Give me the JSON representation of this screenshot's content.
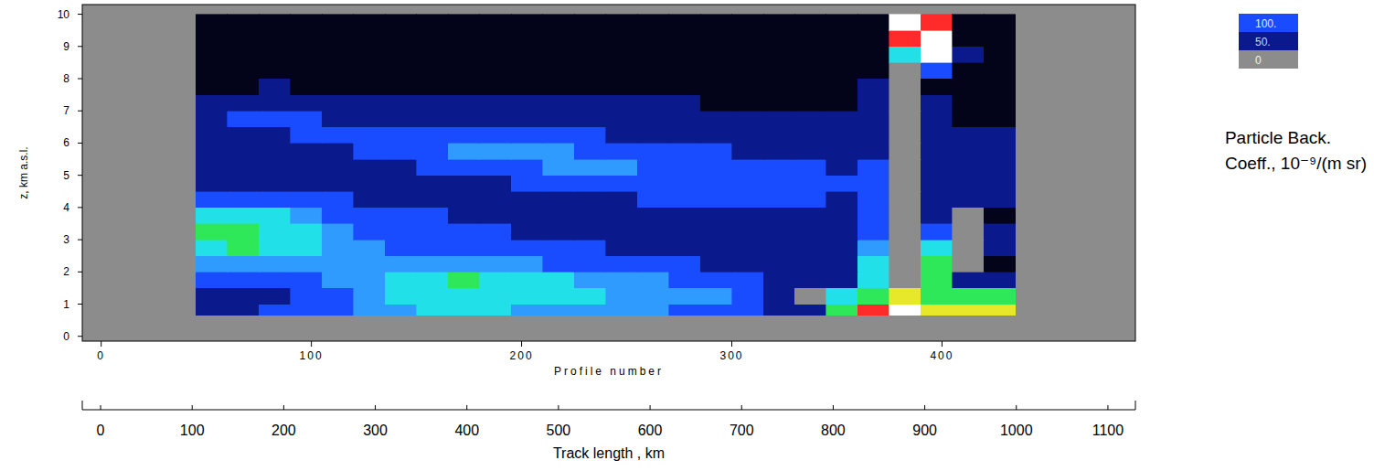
{
  "chart_data": {
    "type": "heatmap",
    "x_label": "Profile number",
    "y_label": "z, km a.s.l.",
    "xlim": [
      -9,
      492
    ],
    "xticks": [
      0,
      100,
      200,
      300,
      400
    ],
    "ylim": [
      -0.15,
      10.3
    ],
    "yticks": [
      0,
      1,
      2,
      3,
      4,
      5,
      6,
      7,
      8,
      9,
      10
    ],
    "x2_label": "Track length , km",
    "x2lim": [
      -20,
      1130
    ],
    "x2ticks": [
      0,
      100,
      200,
      300,
      400,
      500,
      600,
      700,
      800,
      900,
      1000,
      1100
    ],
    "heatmap": {
      "x": [
        45,
        60,
        75,
        90,
        105,
        120,
        135,
        150,
        165,
        180,
        195,
        210,
        225,
        240,
        255,
        270,
        285,
        300,
        315,
        330,
        345,
        360,
        375,
        390,
        405,
        420,
        435
      ],
      "y": [
        0.65,
        1.0,
        1.5,
        2.0,
        2.5,
        3.0,
        3.5,
        4.0,
        4.5,
        5.0,
        5.5,
        6.0,
        6.5,
        7.0,
        7.5,
        8.0,
        8.5,
        9.0,
        9.5,
        10.0
      ],
      "values": [
        [
          80,
          60,
          100,
          130,
          160,
          220,
          260,
          300,
          320,
          300,
          280,
          260,
          240,
          220,
          200,
          180,
          150,
          120,
          80,
          60,
          400,
          700,
          1000,
          500,
          500,
          600
        ],
        [
          60,
          50,
          80,
          120,
          160,
          200,
          300,
          350,
          380,
          370,
          350,
          330,
          300,
          280,
          260,
          240,
          200,
          160,
          80,
          0,
          350,
          400,
          600,
          420,
          450,
          450
        ],
        [
          120,
          100,
          120,
          180,
          260,
          280,
          320,
          380,
          400,
          380,
          350,
          320,
          280,
          260,
          220,
          180,
          150,
          110,
          80,
          60,
          60,
          350,
          0,
          400,
          70,
          60
        ],
        [
          250,
          260,
          240,
          220,
          220,
          210,
          200,
          220,
          230,
          220,
          200,
          180,
          150,
          130,
          120,
          100,
          80,
          70,
          60,
          50,
          50,
          300,
          0,
          400,
          0,
          40
        ],
        [
          380,
          400,
          330,
          300,
          260,
          200,
          160,
          140,
          130,
          120,
          110,
          110,
          100,
          90,
          80,
          70,
          60,
          50,
          50,
          60,
          70,
          200,
          0,
          300,
          0,
          60
        ],
        [
          400,
          420,
          350,
          300,
          220,
          160,
          130,
          110,
          100,
          100,
          90,
          80,
          70,
          60,
          50,
          50,
          50,
          60,
          70,
          70,
          60,
          150,
          0,
          120,
          0,
          50
        ],
        [
          350,
          380,
          300,
          220,
          150,
          120,
          110,
          100,
          90,
          80,
          70,
          60,
          60,
          60,
          60,
          70,
          80,
          90,
          90,
          80,
          70,
          120,
          0,
          60,
          0,
          40
        ],
        [
          120,
          150,
          130,
          110,
          100,
          90,
          80,
          70,
          60,
          60,
          60,
          70,
          80,
          90,
          100,
          110,
          120,
          120,
          110,
          100,
          90,
          100,
          0,
          60,
          50,
          60
        ],
        [
          70,
          80,
          80,
          70,
          60,
          60,
          60,
          70,
          80,
          90,
          100,
          110,
          120,
          140,
          150,
          150,
          140,
          130,
          120,
          110,
          100,
          100,
          0,
          70,
          60,
          60
        ],
        [
          60,
          60,
          60,
          60,
          70,
          80,
          90,
          110,
          130,
          160,
          180,
          200,
          210,
          200,
          180,
          150,
          130,
          120,
          110,
          100,
          90,
          100,
          0,
          80,
          70,
          60
        ],
        [
          50,
          50,
          60,
          70,
          90,
          120,
          140,
          160,
          200,
          220,
          210,
          200,
          180,
          140,
          120,
          110,
          100,
          90,
          80,
          80,
          70,
          90,
          0,
          80,
          60,
          60
        ],
        [
          50,
          60,
          80,
          120,
          140,
          130,
          110,
          100,
          110,
          120,
          120,
          110,
          100,
          90,
          80,
          70,
          70,
          60,
          60,
          60,
          60,
          80,
          0,
          70,
          50,
          50
        ],
        [
          60,
          110,
          130,
          120,
          90,
          80,
          80,
          70,
          80,
          80,
          70,
          70,
          70,
          70,
          60,
          60,
          60,
          50,
          50,
          50,
          50,
          70,
          0,
          60,
          40,
          40
        ],
        [
          60,
          80,
          70,
          60,
          60,
          55,
          55,
          55,
          60,
          60,
          60,
          55,
          55,
          50,
          50,
          50,
          45,
          45,
          40,
          40,
          40,
          60,
          0,
          50,
          30,
          30
        ],
        [
          40,
          40,
          50,
          40,
          40,
          40,
          35,
          35,
          40,
          40,
          40,
          40,
          40,
          40,
          35,
          35,
          35,
          30,
          30,
          25,
          25,
          50,
          0,
          40,
          20,
          20
        ],
        [
          30,
          30,
          30,
          30,
          30,
          30,
          30,
          30,
          30,
          30,
          30,
          30,
          30,
          30,
          30,
          30,
          30,
          30,
          30,
          25,
          20,
          40,
          0,
          100,
          30,
          20
        ],
        [
          25,
          25,
          25,
          25,
          25,
          25,
          25,
          25,
          25,
          25,
          25,
          25,
          25,
          25,
          25,
          25,
          25,
          25,
          25,
          25,
          25,
          40,
          300,
          1000,
          60,
          20
        ],
        [
          20,
          20,
          20,
          20,
          20,
          20,
          20,
          20,
          20,
          20,
          20,
          20,
          20,
          20,
          20,
          20,
          20,
          20,
          20,
          20,
          20,
          30,
          700,
          1000,
          20,
          20
        ],
        [
          20,
          20,
          20,
          20,
          20,
          20,
          20,
          20,
          20,
          20,
          20,
          20,
          20,
          20,
          20,
          20,
          20,
          20,
          20,
          20,
          20,
          30,
          1000,
          700,
          20,
          20
        ]
      ]
    },
    "colorbar": {
      "title": [
        "Particle Back.",
        "Coeff., 10⁻⁹/(m sr)"
      ],
      "levels": [
        0,
        10,
        50,
        100,
        200,
        300,
        400,
        500,
        700,
        1000
      ],
      "colors": [
        "#8c8c8c",
        "#03031a",
        "#0a1a8c",
        "#1a4cff",
        "#2f9bff",
        "#22e0e8",
        "#2ee85a",
        "#e8e82a",
        "#ff2a2a",
        "#ffffff"
      ],
      "ticks": [
        0,
        {
          "value": 50,
          "label": "50."
        },
        {
          "value": 100,
          "label": "100."
        }
      ]
    }
  }
}
